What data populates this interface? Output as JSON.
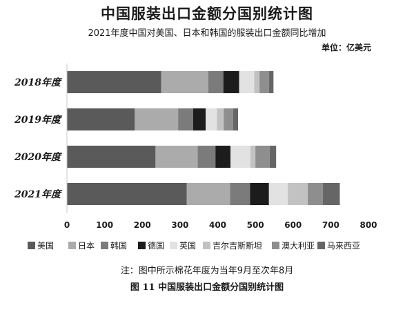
{
  "chart_data": {
    "type": "bar",
    "orientation": "horizontal",
    "stacked": true,
    "title": "中国服装出口金额分国别统计图",
    "subtitle": "2021年度中国对美国、日本和韩国的服装出口金额同比增加",
    "unit_label": "单位：亿美元",
    "categories": [
      "2018年度",
      "2019年度",
      "2020年度",
      "2021年度"
    ],
    "series": [
      {
        "name": "美国",
        "color": "#5a5a5a",
        "values": [
          250,
          180,
          235,
          318
        ]
      },
      {
        "name": "日本",
        "color": "#ababab",
        "values": [
          125,
          115,
          112,
          115
        ]
      },
      {
        "name": "韩国",
        "color": "#7b7b7b",
        "values": [
          40,
          40,
          47,
          53
        ]
      },
      {
        "name": "德国",
        "color": "#1c1c1c",
        "values": [
          42,
          33,
          40,
          50
        ]
      },
      {
        "name": "英国",
        "color": "#e2e2e2",
        "values": [
          40,
          30,
          53,
          50
        ]
      },
      {
        "name": "吉尔吉斯斯坦",
        "color": "#c2c2c2",
        "values": [
          14,
          18,
          13,
          53
        ]
      },
      {
        "name": "澳大利亚",
        "color": "#8e8e8e",
        "values": [
          25,
          25,
          38,
          40
        ]
      },
      {
        "name": "马来西亚",
        "color": "#666666",
        "values": [
          12,
          13,
          17,
          45
        ]
      }
    ],
    "xlim": [
      0,
      800
    ],
    "xticks": [
      0,
      100,
      200,
      300,
      400,
      500,
      600,
      700,
      800
    ],
    "grid": false,
    "legend_position": "bottom"
  },
  "note": "注：图中所示棉花年度为当年9月至次年8月",
  "caption": "图 11    中国服装出口金额分国别统计图"
}
